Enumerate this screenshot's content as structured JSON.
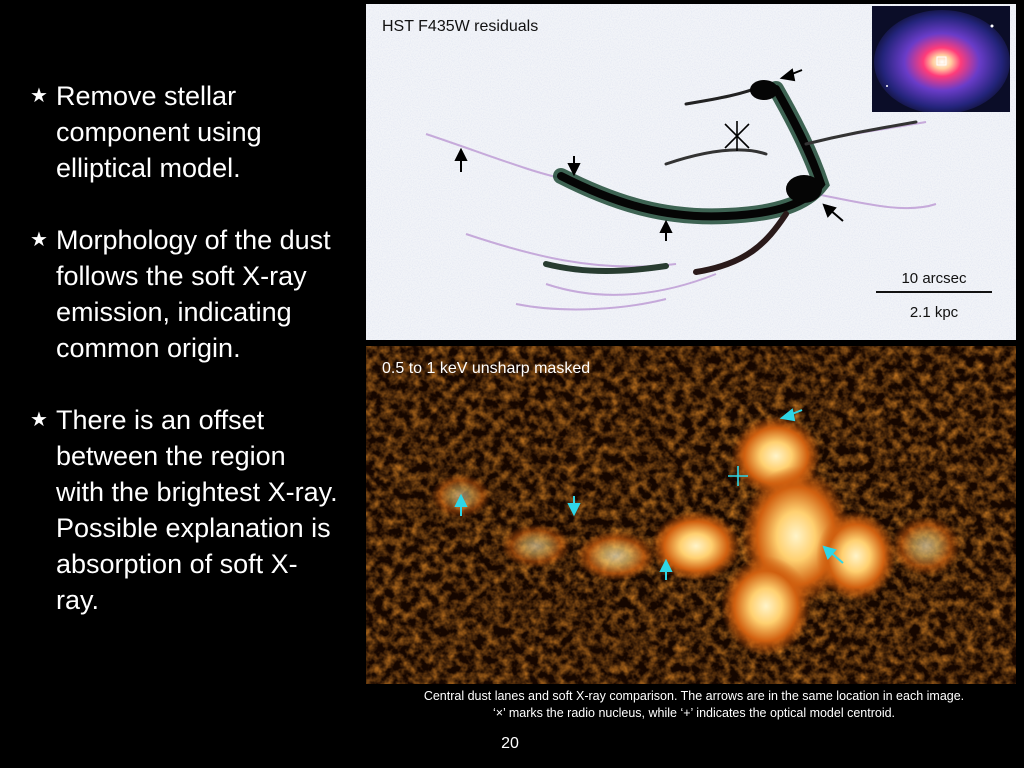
{
  "bullets": [
    {
      "icon": "star-icon",
      "text": "Remove stellar component using elliptical model."
    },
    {
      "icon": "star-icon",
      "text": "Morphology of the dust follows the soft X-ray emission, indicating common origin."
    },
    {
      "icon": "star-icon",
      "text": "There is an offset between the region with the brightest X-ray. Possible explanation is absorption of soft X-ray."
    }
  ],
  "hst_panel": {
    "label": "HST F435W residuals",
    "scale_top": "10 arcsec",
    "scale_bottom": "2.1 kpc",
    "arrow_color": "#000000"
  },
  "xray_panel": {
    "label": "0.5 to 1 keV unsharp masked",
    "arrow_color": "#2fd6e6"
  },
  "caption": {
    "line1": "Central dust lanes and soft X-ray comparison. The arrows are in the same location in each image.",
    "line2": "‘×’ marks the radio nucleus, while ‘+’ indicates the optical model centroid."
  },
  "page_number": "20",
  "star_glyph": "★"
}
